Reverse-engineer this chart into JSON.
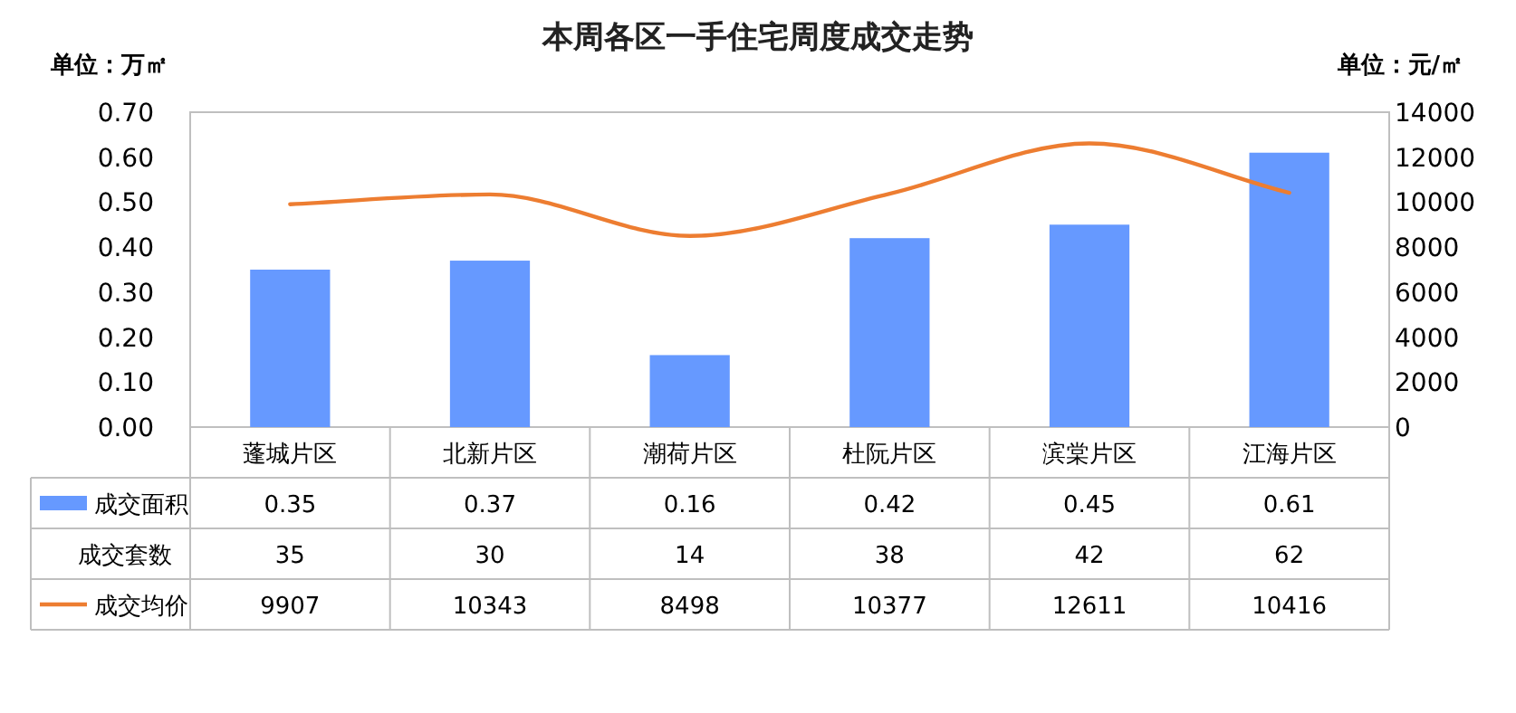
{
  "chart_data": {
    "type": "bar",
    "title": "本周各区一手住宅周度成交走势",
    "ylabel": "单位：万㎡",
    "y2label": "单位：元/㎡",
    "categories": [
      "蓬城片区",
      "北新片区",
      "潮荷片区",
      "杜阮片区",
      "滨棠片区",
      "江海片区"
    ],
    "series": [
      {
        "name": "成交面积",
        "color": "#6699ff",
        "values": [
          0.35,
          0.37,
          0.16,
          0.42,
          0.45,
          0.61
        ]
      },
      {
        "name": "成交均价",
        "type": "line",
        "axis": "y2",
        "color": "#ed7d31",
        "values": [
          9907,
          10343,
          8498,
          10377,
          12611,
          10416
        ]
      }
    ],
    "ylim": [
      0,
      0.7
    ],
    "yticks": [
      {
        "value": 0,
        "label": "0.00"
      },
      {
        "value": 0.1,
        "label": "0.10"
      },
      {
        "value": 0.2,
        "label": "0.20"
      },
      {
        "value": 0.3,
        "label": "0.30"
      },
      {
        "value": 0.4,
        "label": "0.40"
      },
      {
        "value": 0.5,
        "label": "0.50"
      },
      {
        "value": 0.6,
        "label": "0.60"
      },
      {
        "value": 0.7,
        "label": "0.70"
      }
    ],
    "y2lim": [
      0,
      14000
    ],
    "y2ticks": [
      0,
      2000,
      4000,
      6000,
      8000,
      10000,
      12000,
      14000
    ],
    "annotations": [
      "成交套数",
      "35",
      "30",
      "14",
      "38",
      "42",
      "62"
    ],
    "data_labels": true,
    "grid": false,
    "legend": "bottom"
  }
}
